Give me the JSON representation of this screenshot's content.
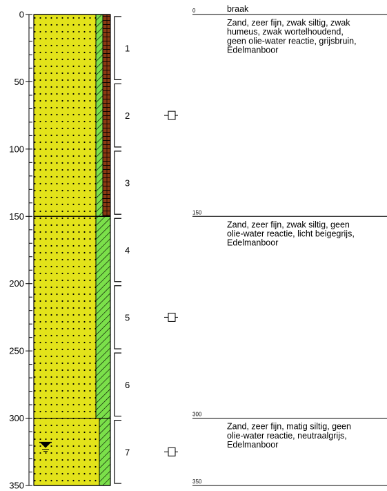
{
  "depth_axis": {
    "min": 0,
    "max": 350,
    "major_ticks": [
      0,
      50,
      100,
      150,
      200,
      250,
      300,
      350
    ],
    "minor_step": 10
  },
  "lithology": [
    {
      "from": 0,
      "to": 150,
      "type": "zand",
      "fill": "#e3e31a"
    },
    {
      "from": 150,
      "to": 300,
      "type": "zand",
      "fill": "#e3e31a"
    },
    {
      "from": 300,
      "to": 350,
      "type": "zand",
      "fill": "#e3e31a"
    }
  ],
  "silt_column": [
    {
      "from": 0,
      "to": 150,
      "level": "zwak siltig"
    },
    {
      "from": 150,
      "to": 300,
      "level": "zwak siltig"
    },
    {
      "from": 300,
      "to": 350,
      "level": "matig siltig"
    }
  ],
  "humus_column": {
    "from": 0,
    "to": 150,
    "fill": "#8b3a12"
  },
  "samples": [
    {
      "label": "1",
      "from": 0,
      "to": 50
    },
    {
      "label": "2",
      "from": 50,
      "to": 100
    },
    {
      "label": "3",
      "from": 100,
      "to": 150
    },
    {
      "label": "4",
      "from": 150,
      "to": 200
    },
    {
      "label": "5",
      "from": 200,
      "to": 250
    },
    {
      "label": "6",
      "from": 250,
      "to": 300
    },
    {
      "label": "7",
      "from": 300,
      "to": 350
    }
  ],
  "markers": [
    {
      "depth": 75
    },
    {
      "depth": 225
    },
    {
      "depth": 325
    }
  ],
  "water_level": {
    "depth": 318
  },
  "descriptions": [
    {
      "depth": 0,
      "depth_label": "0",
      "lines": [
        "braak"
      ],
      "underlined": true
    },
    {
      "depth": 0,
      "lines": [
        "Zand, zeer fijn, zwak siltig, zwak",
        "humeus, zwak wortelhoudend,",
        "geen olie-water reactie, grijsbruin,",
        "Edelmanboor"
      ]
    },
    {
      "depth": 150,
      "depth_label": "150",
      "lines": [
        "Zand, zeer fijn, zwak siltig, geen",
        "olie-water reactie, licht beigegrijs,",
        "Edelmanboor"
      ]
    },
    {
      "depth": 300,
      "depth_label": "300",
      "lines": [
        "Zand, zeer fijn, matig siltig, geen",
        "olie-water reactie, neutraalgrijs,",
        "Edelmanboor"
      ]
    },
    {
      "depth": 350,
      "depth_label": "350",
      "lines": []
    }
  ],
  "colors": {
    "sand": "#e3e31a",
    "silt_stripe": "#7be04a",
    "humus": "#8b3a12",
    "line": "#000000"
  }
}
